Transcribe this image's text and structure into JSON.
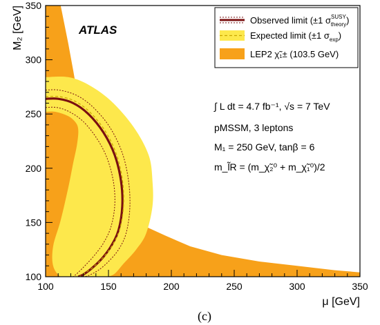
{
  "chart_data": {
    "type": "contour",
    "experiment_label": "ATLAS",
    "xlabel": "μ [GeV]",
    "ylabel": "M₂ [GeV]",
    "xlim": [
      100,
      350
    ],
    "ylim": [
      100,
      350
    ],
    "x_ticks": [
      "100",
      "150",
      "200",
      "250",
      "300",
      "350"
    ],
    "y_ticks": [
      "100",
      "150",
      "200",
      "250",
      "300",
      "350"
    ],
    "panel_label": "(c)",
    "legend_position": "top-right",
    "legend": [
      {
        "key": "observed",
        "label": "Observed limit (±1 σ",
        "sup": "SUSY",
        "sub": "theory",
        "tail": ")"
      },
      {
        "key": "expected",
        "label": "Expected limit (±1 σ",
        "sub": "exp",
        "tail": ")"
      },
      {
        "key": "lep2",
        "label": "LEP2  χ̃₁± (103.5 GeV)"
      }
    ],
    "annotations": {
      "lumi": "∫ L dt = 4.7 fb⁻¹, √s = 7 TeV",
      "model": "pMSSM, 3 leptons",
      "params": "M₁ = 250 GeV, tanβ = 6",
      "slepton": "m_l̃R = (m_χ̃₂⁰ + m_χ̃₁⁰)/2"
    },
    "colors": {
      "lep2": "#f7a11a",
      "expected_band": "#fde84c",
      "observed": "#7a1010",
      "expected_line": "#c8a400"
    },
    "lep2_region": {
      "x": [
        100,
        112,
        118,
        122,
        125,
        129,
        133,
        138,
        145,
        152,
        160,
        170,
        180,
        195,
        215,
        240,
        270,
        300,
        330,
        350,
        350,
        100
      ],
      "y": [
        350,
        350,
        315,
        290,
        270,
        250,
        230,
        210,
        190,
        172,
        160,
        152,
        146,
        138,
        128,
        120,
        114,
        110,
        106,
        104,
        100,
        100
      ]
    },
    "lep2_left_region": {
      "x": [
        100,
        106,
        113,
        118,
        121,
        123,
        124,
        124,
        124,
        100
      ],
      "y": [
        240,
        240,
        234,
        222,
        205,
        185,
        160,
        130,
        100,
        100
      ]
    },
    "expected_band": {
      "x": [
        100,
        118,
        134,
        152,
        170,
        182,
        185,
        185,
        180,
        172,
        162,
        154,
        146,
        138,
        130,
        120,
        112,
        106,
        106,
        112,
        118,
        122,
        125,
        126,
        124,
        118,
        108,
        100
      ],
      "y": [
        284,
        284,
        277,
        262,
        238,
        212,
        188,
        165,
        140,
        125,
        112,
        102,
        100,
        100,
        100,
        100,
        100,
        110,
        128,
        152,
        182,
        205,
        222,
        235,
        242,
        248,
        252,
        252
      ]
    },
    "observed_limit": {
      "x": [
        100,
        110,
        122,
        134,
        146,
        155,
        160,
        161,
        158,
        152,
        145,
        137,
        130,
        126
      ],
      "y": [
        264,
        264,
        260,
        250,
        233,
        212,
        188,
        165,
        143,
        128,
        117,
        108,
        102,
        100
      ]
    },
    "expected_limit": {
      "x": [
        100,
        111,
        123,
        135,
        147,
        156,
        161,
        162,
        159,
        153,
        146,
        138,
        131,
        127
      ],
      "y": [
        266,
        266,
        262,
        252,
        235,
        214,
        190,
        166,
        144,
        129,
        118,
        109,
        103,
        100
      ]
    },
    "observed_minus1sigma": {
      "x": [
        100,
        111,
        125,
        138,
        151,
        161,
        166,
        167,
        164,
        158,
        150,
        142,
        134,
        130
      ],
      "y": [
        272,
        272,
        267,
        256,
        238,
        214,
        188,
        163,
        140,
        125,
        114,
        106,
        101,
        100
      ]
    },
    "observed_plus1sigma": {
      "x": [
        100,
        109,
        119,
        130,
        141,
        149,
        154,
        155,
        152,
        146,
        139,
        132,
        126,
        122
      ],
      "y": [
        256,
        256,
        252,
        243,
        227,
        209,
        187,
        166,
        146,
        131,
        120,
        111,
        104,
        100
      ]
    }
  }
}
